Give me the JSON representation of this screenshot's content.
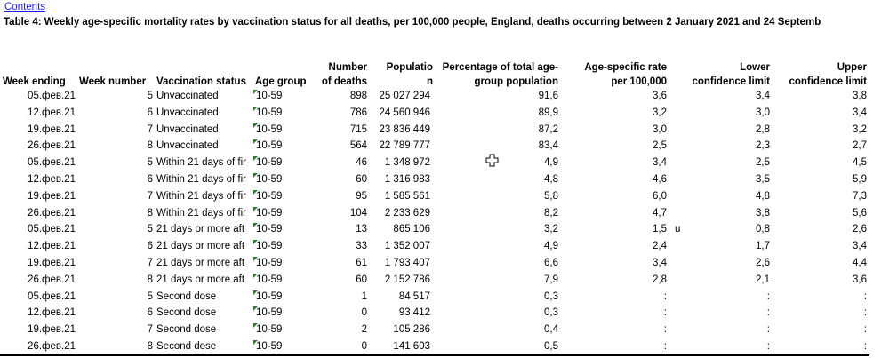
{
  "link": "Contents",
  "title": "Table 4: Weekly age-specific mortality rates by vaccination status for all deaths, per 100,000 people, England, deaths occurring between 2 January 2021 and 24 Septemb",
  "table": {
    "header": {
      "week_ending": "Week ending",
      "week_number": "Week number",
      "status": "Vaccination status",
      "age_group": "Age group",
      "deaths": "Number\nof deaths",
      "population": "Populatio\nn",
      "percentage": "Percentage of total age-\ngroup population",
      "rate": "Age-specific rate\nper 100,000",
      "lower": "Lower\nconfidence limit",
      "upper": "Upper\nconfidence limit"
    },
    "rows": [
      {
        "week_ending": "05.фев.21",
        "week_number": "5",
        "status": "Unvaccinated",
        "age_group": "10-59",
        "deaths": "898",
        "population": "25 027 294",
        "percentage": "91,6",
        "rate": "3,6",
        "lower": "3,4",
        "upper": "3,8"
      },
      {
        "week_ending": "12.фев.21",
        "week_number": "6",
        "status": "Unvaccinated",
        "age_group": "10-59",
        "deaths": "786",
        "population": "24 560 946",
        "percentage": "89,9",
        "rate": "3,2",
        "lower": "3,0",
        "upper": "3,4"
      },
      {
        "week_ending": "19.фев.21",
        "week_number": "7",
        "status": "Unvaccinated",
        "age_group": "10-59",
        "deaths": "715",
        "population": "23 836 449",
        "percentage": "87,2",
        "rate": "3,0",
        "lower": "2,8",
        "upper": "3,2"
      },
      {
        "week_ending": "26.фев.21",
        "week_number": "8",
        "status": "Unvaccinated",
        "age_group": "10-59",
        "deaths": "564",
        "population": "22 789 777",
        "percentage": "83,4",
        "rate": "2,5",
        "lower": "2,3",
        "upper": "2,7"
      },
      {
        "week_ending": "05.фев.21",
        "week_number": "5",
        "status": "Within 21 days of fir",
        "age_group": "10-59",
        "deaths": "46",
        "population": "1 348 972",
        "percentage": "4,9",
        "rate": "3,4",
        "lower": "2,5",
        "upper": "4,5"
      },
      {
        "week_ending": "12.фев.21",
        "week_number": "6",
        "status": "Within 21 days of fir",
        "age_group": "10-59",
        "deaths": "60",
        "population": "1 316 983",
        "percentage": "4,8",
        "rate": "4,6",
        "lower": "3,5",
        "upper": "5,9"
      },
      {
        "week_ending": "19.фев.21",
        "week_number": "7",
        "status": "Within 21 days of fir",
        "age_group": "10-59",
        "deaths": "95",
        "population": "1 585 561",
        "percentage": "5,8",
        "rate": "6,0",
        "lower": "4,8",
        "upper": "7,3"
      },
      {
        "week_ending": "26.фев.21",
        "week_number": "8",
        "status": "Within 21 days of fir",
        "age_group": "10-59",
        "deaths": "104",
        "population": "2 233 629",
        "percentage": "8,2",
        "rate": "4,7",
        "lower": "3,8",
        "upper": "5,6"
      },
      {
        "week_ending": "05.фев.21",
        "week_number": "5",
        "status": "21 days or more aft",
        "age_group": "10-59",
        "deaths": "13",
        "population": "865 106",
        "percentage": "3,2",
        "rate": "1,5",
        "rate_flag": "u",
        "lower": "0,8",
        "upper": "2,6"
      },
      {
        "week_ending": "12.фев.21",
        "week_number": "6",
        "status": "21 days or more aft",
        "age_group": "10-59",
        "deaths": "33",
        "population": "1 352 007",
        "percentage": "4,9",
        "rate": "2,4",
        "lower": "1,7",
        "upper": "3,4"
      },
      {
        "week_ending": "19.фев.21",
        "week_number": "7",
        "status": "21 days or more aft",
        "age_group": "10-59",
        "deaths": "61",
        "population": "1 793 407",
        "percentage": "6,6",
        "rate": "3,4",
        "lower": "2,6",
        "upper": "4,4"
      },
      {
        "week_ending": "26.фев.21",
        "week_number": "8",
        "status": "21 days or more aft",
        "age_group": "10-59",
        "deaths": "60",
        "population": "2 152 786",
        "percentage": "7,9",
        "rate": "2,8",
        "lower": "2,1",
        "upper": "3,6"
      },
      {
        "week_ending": "05.фев.21",
        "week_number": "5",
        "status": "Second dose",
        "age_group": "10-59",
        "deaths": "1",
        "population": "84 517",
        "percentage": "0,3",
        "rate": ":",
        "lower": ":",
        "upper": ":"
      },
      {
        "week_ending": "12.фев.21",
        "week_number": "6",
        "status": "Second dose",
        "age_group": "10-59",
        "deaths": "0",
        "population": "93 412",
        "percentage": "0,3",
        "rate": ":",
        "lower": ":",
        "upper": ":"
      },
      {
        "week_ending": "19.фев.21",
        "week_number": "7",
        "status": "Second dose",
        "age_group": "10-59",
        "deaths": "2",
        "population": "105 286",
        "percentage": "0,4",
        "rate": ":",
        "lower": ":",
        "upper": ":"
      },
      {
        "week_ending": "26.фев.21",
        "week_number": "8",
        "status": "Second dose",
        "age_group": "10-59",
        "deaths": "0",
        "population": "141 603",
        "percentage": "0,5",
        "rate": ":",
        "lower": ":",
        "upper": ":"
      }
    ]
  }
}
